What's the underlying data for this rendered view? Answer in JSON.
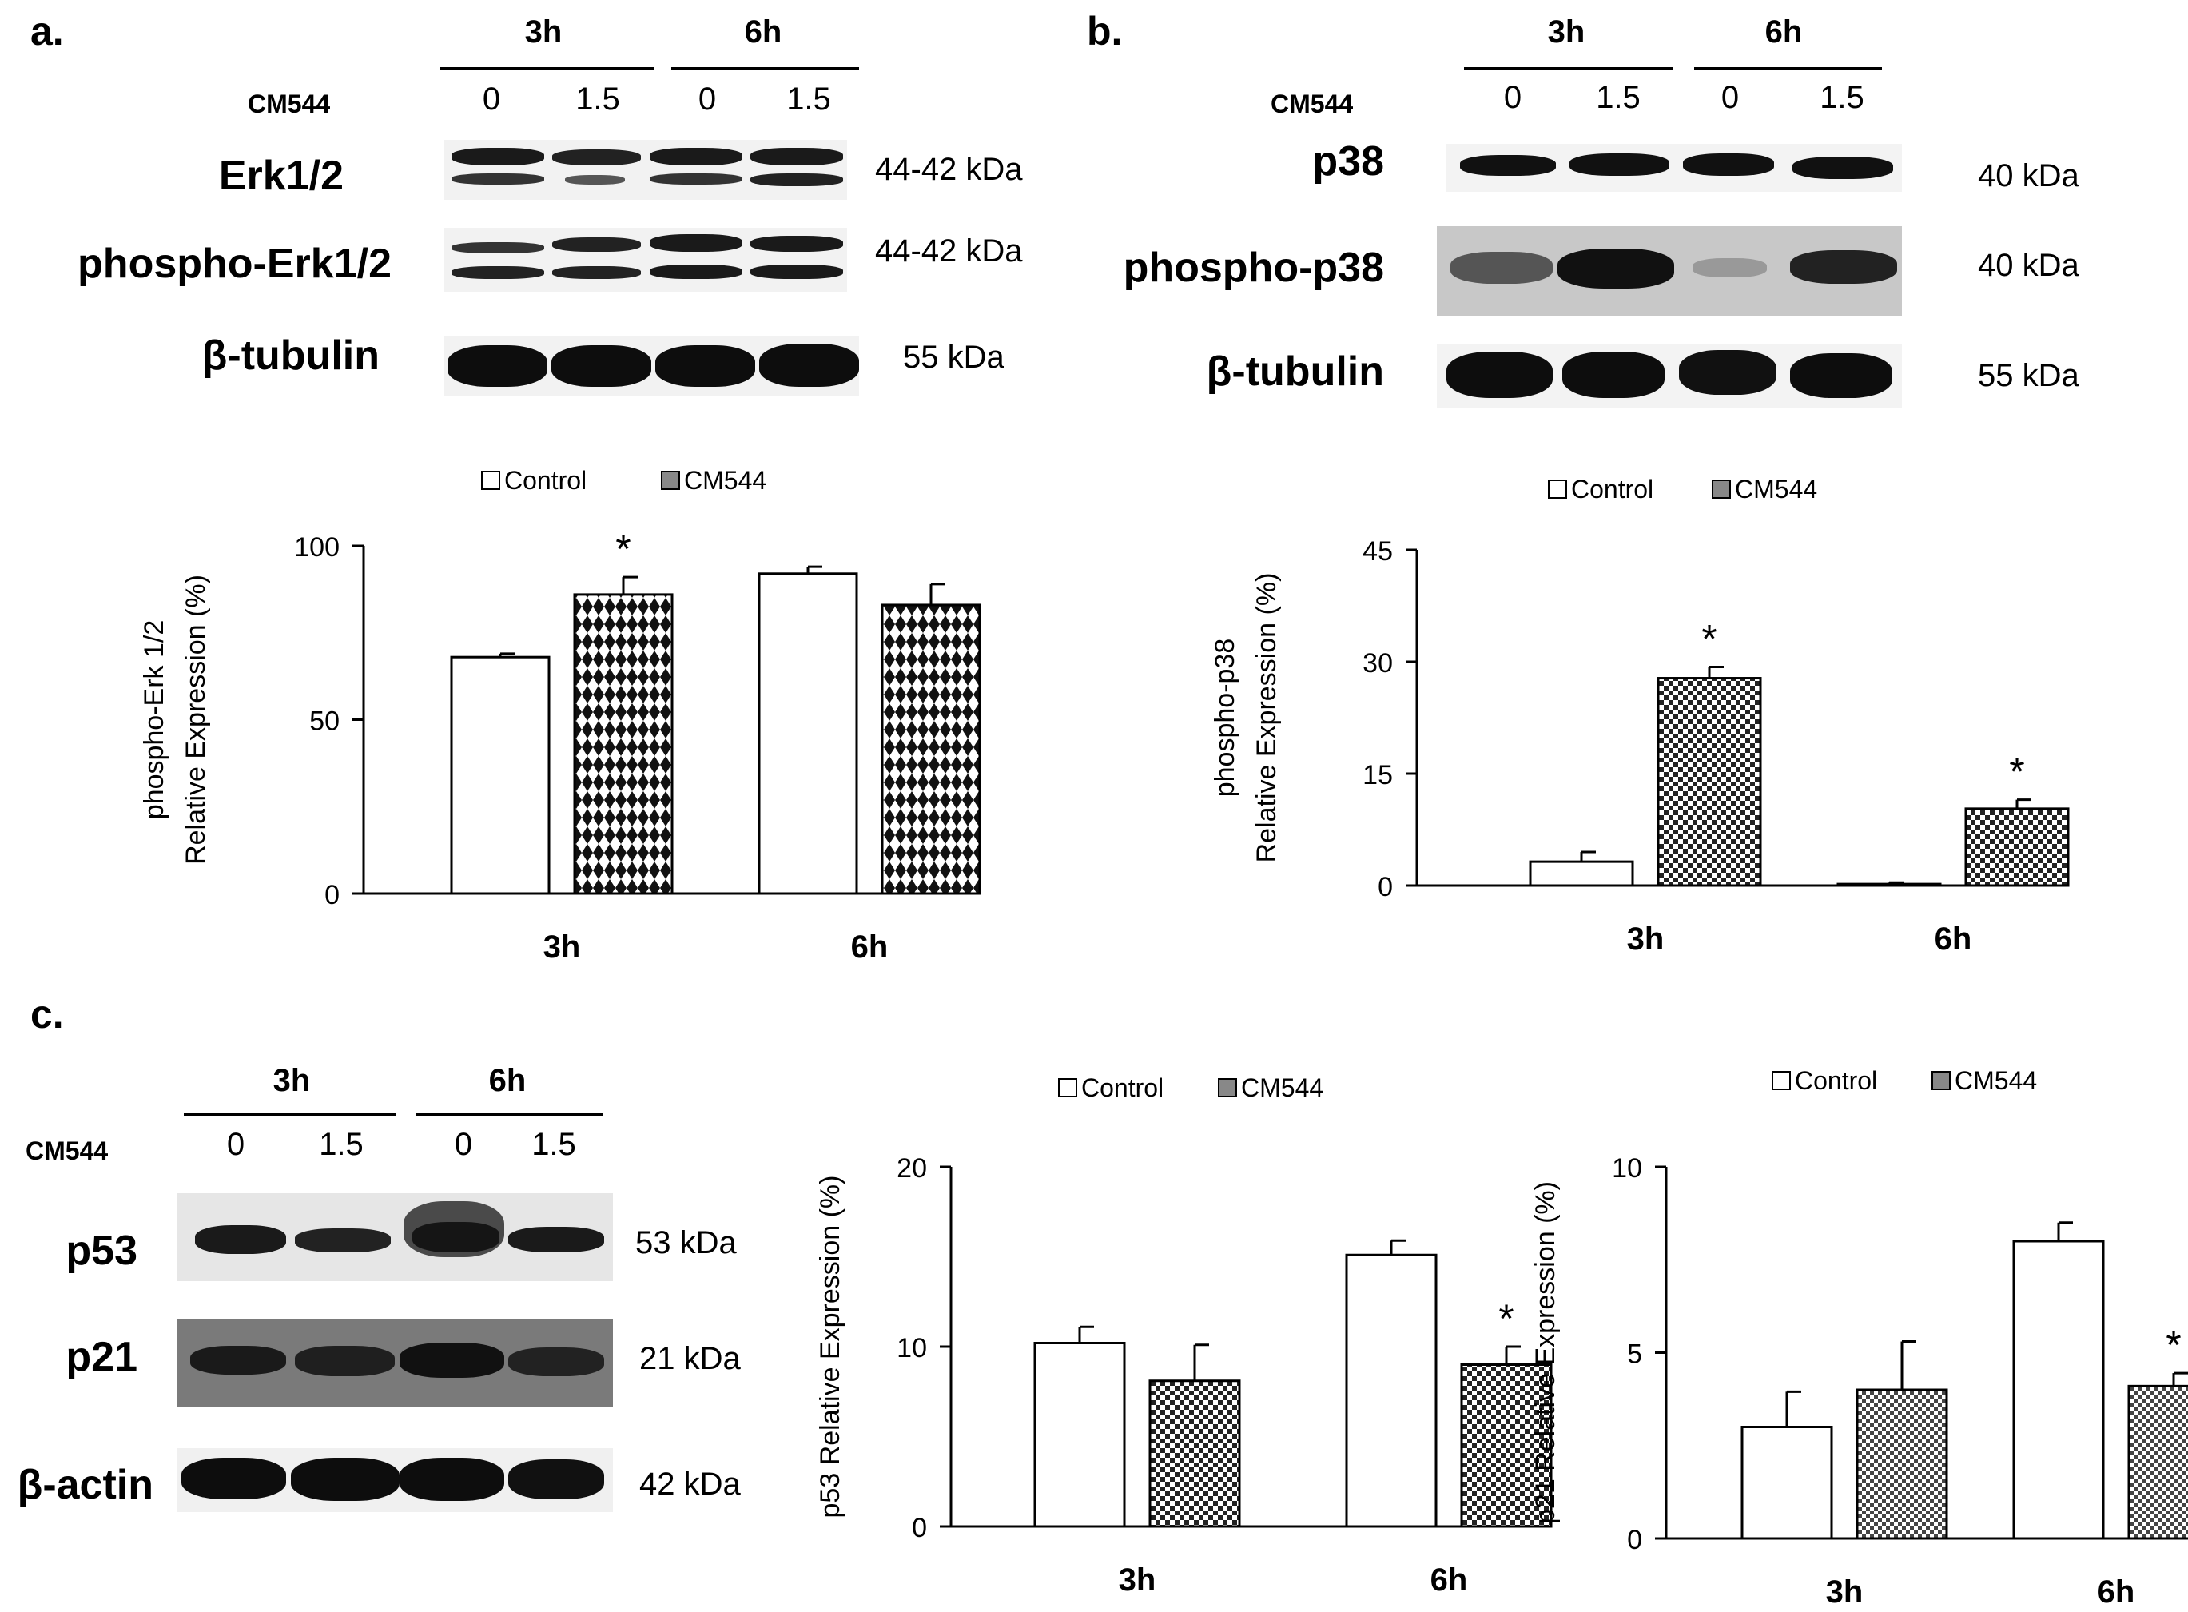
{
  "panels": {
    "a": {
      "letter": "a."
    },
    "b": {
      "letter": "b."
    },
    "c": {
      "letter": "c."
    }
  },
  "blots": {
    "treatment_label": "CM544",
    "time_groups": [
      "3h",
      "6h"
    ],
    "doses": [
      "0",
      "1.5",
      "0",
      "1.5"
    ],
    "a": {
      "rows": [
        {
          "label": "Erk1/2",
          "kda": "44-42 kDa"
        },
        {
          "label": "phospho-Erk1/2",
          "kda": "44-42 kDa"
        },
        {
          "label": "β-tubulin",
          "kda": "55 kDa"
        }
      ]
    },
    "b": {
      "rows": [
        {
          "label": "p38",
          "kda": "40 kDa"
        },
        {
          "label": "phospho-p38",
          "kda": "40 kDa"
        },
        {
          "label": "β-tubulin",
          "kda": "55 kDa"
        }
      ]
    },
    "c": {
      "rows": [
        {
          "label": "p53",
          "kda": "53 kDa"
        },
        {
          "label": "p21",
          "kda": "21 kDa"
        },
        {
          "label": "β-actin",
          "kda": "42 kDa"
        }
      ]
    }
  },
  "chart_data": [
    {
      "id": "erk",
      "type": "bar",
      "categories": [
        "3h",
        "6h"
      ],
      "series": [
        {
          "name": "Control",
          "values": [
            68,
            92
          ],
          "errors": [
            1,
            2
          ]
        },
        {
          "name": "CM544",
          "values": [
            86,
            83
          ],
          "errors": [
            5,
            6
          ]
        }
      ],
      "significance": [
        [
          false,
          false
        ],
        [
          true,
          false
        ]
      ],
      "star": "*",
      "ylabel_lines": [
        "phospho-Erk 1/2",
        "Relative Expression (%)"
      ],
      "ylim": [
        0,
        100
      ],
      "yticks": [
        0,
        50,
        100
      ],
      "legend": "top"
    },
    {
      "id": "p38",
      "type": "bar",
      "categories": [
        "3h",
        "6h"
      ],
      "series": [
        {
          "name": "Control",
          "values": [
            3.2,
            0.2
          ],
          "errors": [
            1.3,
            0.2
          ]
        },
        {
          "name": "CM544",
          "values": [
            27.8,
            10.3
          ],
          "errors": [
            1.5,
            1.2
          ]
        }
      ],
      "significance": [
        [
          false,
          false
        ],
        [
          true,
          true
        ]
      ],
      "star": "*",
      "ylabel_lines": [
        "phospho-p38",
        "Relative Expression (%)"
      ],
      "ylim": [
        0,
        45
      ],
      "yticks": [
        0,
        15,
        30,
        45
      ],
      "legend": "top"
    },
    {
      "id": "p53",
      "type": "bar",
      "categories": [
        "3h",
        "6h"
      ],
      "series": [
        {
          "name": "Control",
          "values": [
            10.2,
            15.1
          ],
          "errors": [
            0.9,
            0.8
          ]
        },
        {
          "name": "CM544",
          "values": [
            8.1,
            9.0
          ],
          "errors": [
            2.0,
            1.0
          ]
        }
      ],
      "significance": [
        [
          false,
          false
        ],
        [
          false,
          true
        ]
      ],
      "star": "*",
      "ylabel_lines": [
        "p53 Relative Expression (%)"
      ],
      "ylim": [
        0,
        20
      ],
      "yticks": [
        0,
        10,
        20
      ],
      "legend": "top"
    },
    {
      "id": "p21",
      "type": "bar",
      "categories": [
        "3h",
        "6h"
      ],
      "series": [
        {
          "name": "Control",
          "values": [
            3.0,
            8.0
          ],
          "errors": [
            0.95,
            0.5
          ]
        },
        {
          "name": "CM544",
          "values": [
            4.0,
            4.1
          ],
          "errors": [
            1.3,
            0.35
          ]
        }
      ],
      "significance": [
        [
          false,
          false
        ],
        [
          false,
          true
        ]
      ],
      "star": "*",
      "ylabel_lines": [
        "p21 Relative Expression (%)"
      ],
      "ylim": [
        0,
        10
      ],
      "yticks": [
        0,
        5,
        10
      ],
      "legend": "top"
    }
  ]
}
